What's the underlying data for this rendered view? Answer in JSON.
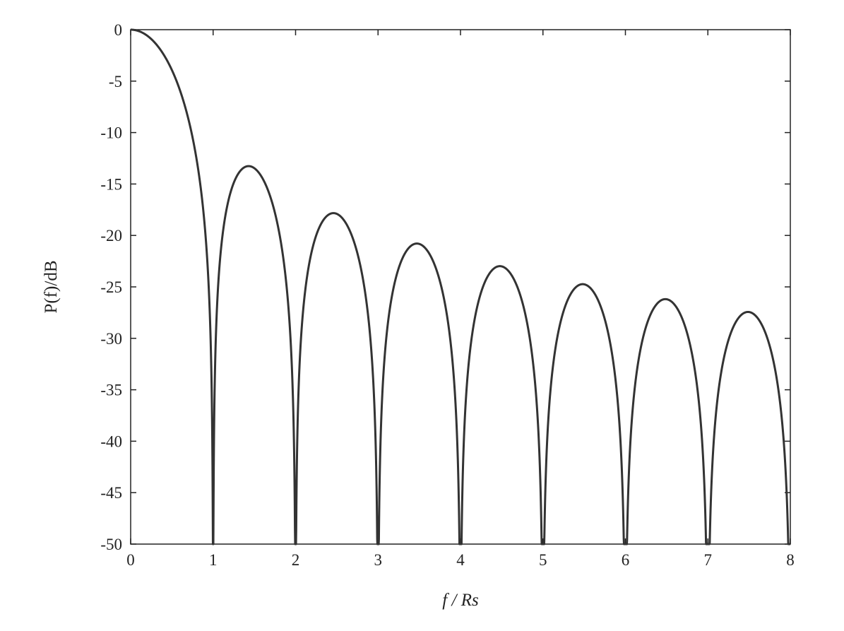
{
  "chart_data": {
    "type": "line",
    "title": "",
    "xlabel": "f / Rs",
    "ylabel": "P(f)/dB",
    "xlim": [
      0,
      8
    ],
    "ylim": [
      -50,
      0
    ],
    "xticks": [
      "0",
      "1",
      "2",
      "3",
      "4",
      "5",
      "6",
      "7",
      "8"
    ],
    "yticks": [
      "0",
      "-5",
      "-10",
      "-15",
      "-20",
      "-25",
      "-30",
      "-35",
      "-40",
      "-45",
      "-50"
    ],
    "grid": false,
    "series": [
      {
        "function": "10*log10(sinc^2(x))",
        "x": [
          0,
          0.25,
          0.5,
          0.75,
          0.9,
          1.0,
          1.1,
          1.25,
          1.43,
          1.6,
          1.8,
          1.95,
          2.0,
          2.05,
          2.2,
          2.46,
          2.7,
          2.9,
          3.0,
          3.1,
          3.47,
          3.9,
          4.0,
          4.1,
          4.49,
          4.9,
          5.0,
          5.1,
          5.49,
          5.9,
          6.0,
          6.1,
          6.5,
          6.9,
          7.0,
          7.1,
          7.5,
          7.9,
          8.0
        ],
        "y": [
          0,
          -0.9,
          -3.9,
          -10.5,
          -19.0,
          -50,
          -20.7,
          -14.9,
          -13.3,
          -14.5,
          -19.8,
          -31.5,
          -50,
          -32.2,
          -22.0,
          -17.9,
          -19.9,
          -28.2,
          -50,
          -28.6,
          -20.8,
          -30.9,
          -50,
          -31.1,
          -23.0,
          -33.1,
          -50,
          -33.2,
          -24.8,
          -34.8,
          -50,
          -34.9,
          -26.2,
          -36.3,
          -50,
          -36.4,
          -27.5,
          -37.5,
          -50
        ]
      }
    ]
  }
}
